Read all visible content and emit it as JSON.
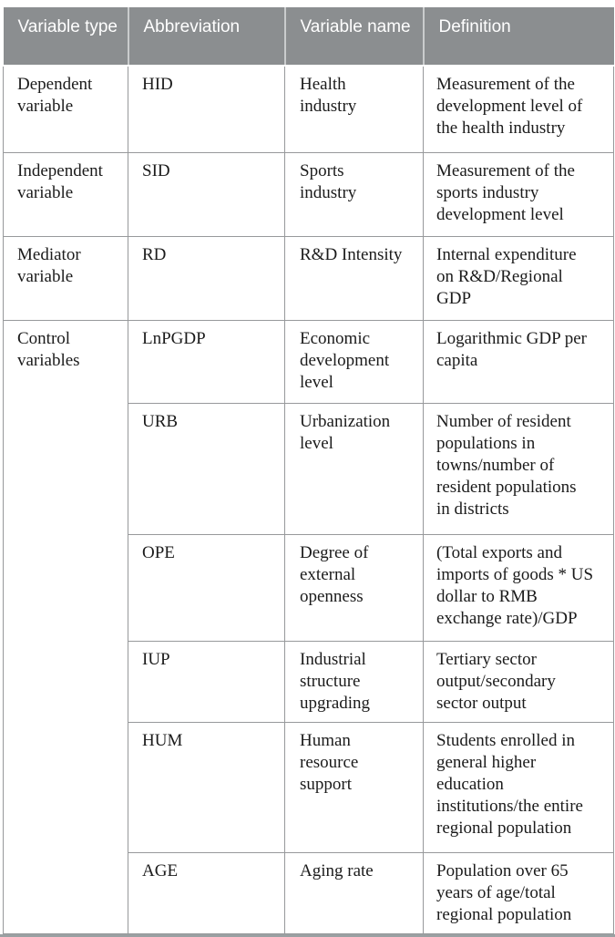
{
  "table": {
    "columns": [
      "Variable type",
      "Abbreviation",
      "Variable name",
      "Definition"
    ],
    "groups": [
      {
        "type": "Dependent\nvariable",
        "entries": [
          {
            "abbreviation": "HID",
            "name": "Health\nindustry",
            "definition": "Measurement of the\ndevelopment level of\nthe health industry"
          }
        ]
      },
      {
        "type": "Independent\nvariable",
        "entries": [
          {
            "abbreviation": "SID",
            "name": "Sports\nindustry",
            "definition": "Measurement of the\nsports industry\ndevelopment level"
          }
        ]
      },
      {
        "type": "Mediator\nvariable",
        "entries": [
          {
            "abbreviation": "RD",
            "name": "R&D Intensity",
            "definition": "Internal expenditure\non R&D/Regional\nGDP"
          }
        ]
      },
      {
        "type": "Control\nvariables",
        "entries": [
          {
            "abbreviation": "LnPGDP",
            "name": "Economic\ndevelopment\nlevel",
            "definition": "Logarithmic GDP per\ncapita"
          },
          {
            "abbreviation": "URB",
            "name": "Urbanization\nlevel",
            "definition": "Number of resident\npopulations in\ntowns/number of\nresident populations\nin districts"
          },
          {
            "abbreviation": "OPE",
            "name": "Degree of\nexternal\nopenness",
            "definition": "(Total exports and\nimports of goods * US\ndollar to RMB\nexchange rate)/GDP"
          },
          {
            "abbreviation": "IUP",
            "name": "Industrial\nstructure\nupgrading",
            "definition": "Tertiary sector\noutput/secondary\nsector output"
          },
          {
            "abbreviation": "HUM",
            "name": "Human\nresource\nsupport",
            "definition": "Students enrolled in\ngeneral higher\neducation\ninstitutions/the entire\nregional population"
          },
          {
            "abbreviation": "AGE",
            "name": "Aging rate",
            "definition": "Population over 65\nyears of age/total\nregional population"
          }
        ]
      }
    ],
    "colors": {
      "header_background": "#8b8e90",
      "header_text": "#ffffff",
      "body_text": "#1b1b1b",
      "cell_border": "#97999b",
      "bottom_rule": "#9aa0a2"
    }
  }
}
